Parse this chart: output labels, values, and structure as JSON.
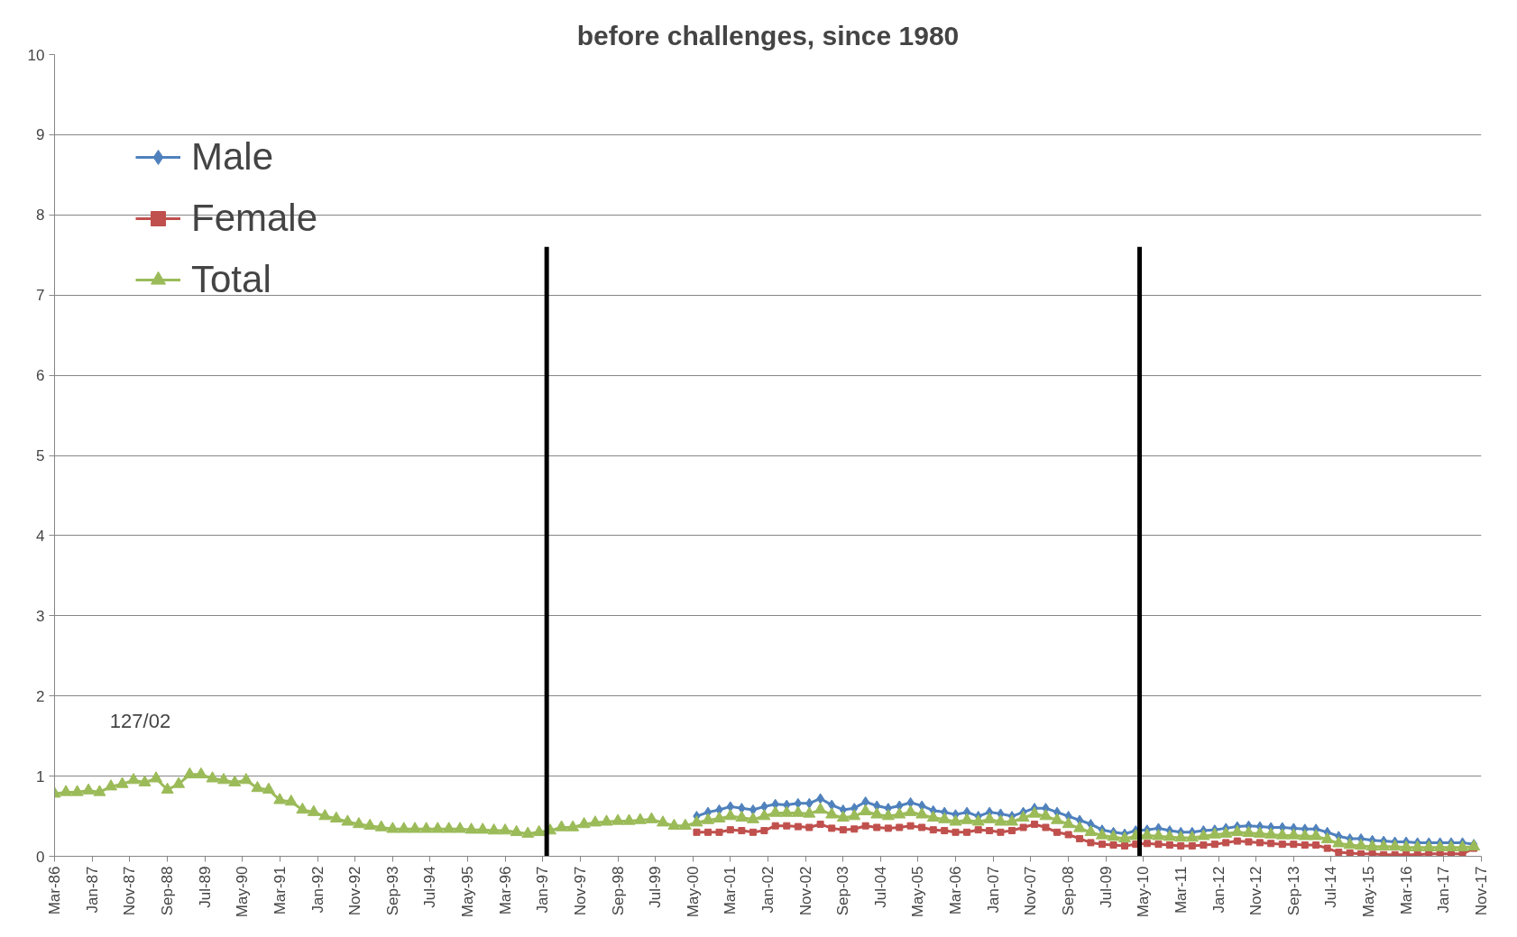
{
  "chart_data": {
    "type": "line",
    "title": "before challenges, since 1980",
    "x": [
      "1986-03",
      "1986-06",
      "1986-09",
      "1986-12",
      "1987-03",
      "1987-06",
      "1987-09",
      "1987-12",
      "1988-03",
      "1988-06",
      "1988-09",
      "1988-12",
      "1989-03",
      "1989-06",
      "1989-09",
      "1989-12",
      "1990-03",
      "1990-06",
      "1990-09",
      "1990-12",
      "1991-03",
      "1991-06",
      "1991-09",
      "1991-12",
      "1992-03",
      "1992-06",
      "1992-09",
      "1992-12",
      "1993-03",
      "1993-06",
      "1993-09",
      "1993-12",
      "1994-03",
      "1994-06",
      "1994-09",
      "1994-12",
      "1995-03",
      "1995-06",
      "1995-09",
      "1995-12",
      "1996-03",
      "1996-06",
      "1996-09",
      "1996-12",
      "1997-03",
      "1997-06",
      "1997-09",
      "1997-12",
      "1998-03",
      "1998-06",
      "1998-09",
      "1998-12",
      "1999-03",
      "1999-06",
      "1999-09",
      "1999-12",
      "2000-03",
      "2000-06",
      "2000-09",
      "2000-12",
      "2001-03",
      "2001-06",
      "2001-09",
      "2001-12",
      "2002-03",
      "2002-06",
      "2002-09",
      "2002-12",
      "2003-03",
      "2003-06",
      "2003-09",
      "2003-12",
      "2004-03",
      "2004-06",
      "2004-09",
      "2004-12",
      "2005-03",
      "2005-06",
      "2005-09",
      "2005-12",
      "2006-03",
      "2006-06",
      "2006-09",
      "2006-12",
      "2007-03",
      "2007-06",
      "2007-09",
      "2007-12",
      "2008-03",
      "2008-06",
      "2008-09",
      "2008-12",
      "2009-03",
      "2009-06",
      "2009-09",
      "2009-12",
      "2010-03",
      "2010-06",
      "2010-09",
      "2010-12",
      "2011-03",
      "2011-06",
      "2011-09",
      "2011-12",
      "2012-03",
      "2012-06",
      "2012-09",
      "2012-12",
      "2013-03",
      "2013-06",
      "2013-09",
      "2013-12",
      "2014-03",
      "2014-06",
      "2014-09",
      "2014-12",
      "2015-03",
      "2015-06",
      "2015-09",
      "2015-12",
      "2016-03",
      "2016-06",
      "2016-09",
      "2016-12",
      "2017-03",
      "2017-06",
      "2017-09"
    ],
    "series": [
      {
        "name": "Male",
        "color": "#4f81bd",
        "marker": "diamond",
        "values": [
          null,
          null,
          null,
          null,
          null,
          null,
          null,
          null,
          null,
          null,
          null,
          null,
          null,
          null,
          null,
          null,
          null,
          null,
          null,
          null,
          null,
          null,
          null,
          null,
          null,
          null,
          null,
          null,
          null,
          null,
          null,
          null,
          null,
          null,
          null,
          null,
          null,
          null,
          null,
          null,
          null,
          null,
          null,
          null,
          null,
          null,
          null,
          null,
          null,
          null,
          null,
          null,
          null,
          null,
          null,
          null,
          null,
          0.5,
          0.55,
          0.58,
          0.62,
          0.6,
          0.58,
          0.62,
          0.65,
          0.64,
          0.66,
          0.66,
          0.72,
          0.64,
          0.58,
          0.6,
          0.68,
          0.63,
          0.6,
          0.63,
          0.67,
          0.63,
          0.57,
          0.55,
          0.52,
          0.55,
          0.5,
          0.55,
          0.53,
          0.5,
          0.55,
          0.6,
          0.6,
          0.55,
          0.5,
          0.45,
          0.4,
          0.33,
          0.3,
          0.28,
          0.32,
          0.33,
          0.35,
          0.32,
          0.3,
          0.3,
          0.32,
          0.33,
          0.35,
          0.37,
          0.38,
          0.37,
          0.36,
          0.36,
          0.35,
          0.34,
          0.34,
          0.3,
          0.25,
          0.22,
          0.22,
          0.2,
          0.19,
          0.18,
          0.18,
          0.17,
          0.17,
          0.17,
          0.17,
          0.17,
          0.15
        ]
      },
      {
        "name": "Female",
        "color": "#c0504d",
        "marker": "square",
        "values": [
          null,
          null,
          null,
          null,
          null,
          null,
          null,
          null,
          null,
          null,
          null,
          null,
          null,
          null,
          null,
          null,
          null,
          null,
          null,
          null,
          null,
          null,
          null,
          null,
          null,
          null,
          null,
          null,
          null,
          null,
          null,
          null,
          null,
          null,
          null,
          null,
          null,
          null,
          null,
          null,
          null,
          null,
          null,
          null,
          null,
          null,
          null,
          null,
          null,
          null,
          null,
          null,
          null,
          null,
          null,
          null,
          null,
          0.3,
          0.3,
          0.3,
          0.33,
          0.32,
          0.3,
          0.32,
          0.38,
          0.38,
          0.37,
          0.36,
          0.4,
          0.35,
          0.33,
          0.34,
          0.38,
          0.36,
          0.35,
          0.36,
          0.38,
          0.36,
          0.33,
          0.32,
          0.3,
          0.3,
          0.33,
          0.32,
          0.3,
          0.32,
          0.36,
          0.4,
          0.36,
          0.3,
          0.27,
          0.22,
          0.17,
          0.15,
          0.14,
          0.13,
          0.15,
          0.16,
          0.15,
          0.14,
          0.13,
          0.13,
          0.14,
          0.15,
          0.17,
          0.19,
          0.18,
          0.17,
          0.16,
          0.15,
          0.15,
          0.14,
          0.14,
          0.1,
          0.05,
          0.04,
          0.03,
          0.03,
          0.02,
          0.02,
          0.02,
          0.02,
          0.03,
          0.03,
          0.03,
          0.03,
          0.1
        ]
      },
      {
        "name": "Total",
        "color": "#9bbb59",
        "marker": "triangle",
        "values": [
          0.78,
          0.8,
          0.8,
          0.82,
          0.8,
          0.87,
          0.9,
          0.95,
          0.92,
          0.97,
          0.83,
          0.9,
          1.02,
          1.02,
          0.97,
          0.95,
          0.92,
          0.95,
          0.85,
          0.83,
          0.7,
          0.68,
          0.58,
          0.55,
          0.5,
          0.47,
          0.43,
          0.4,
          0.38,
          0.36,
          0.34,
          0.34,
          0.34,
          0.34,
          0.34,
          0.34,
          0.34,
          0.33,
          0.33,
          0.32,
          0.32,
          0.3,
          0.28,
          0.3,
          0.32,
          0.36,
          0.36,
          0.4,
          0.42,
          0.43,
          0.44,
          0.44,
          0.45,
          0.46,
          0.42,
          0.38,
          0.38,
          0.42,
          0.45,
          0.47,
          0.5,
          0.48,
          0.46,
          0.5,
          0.54,
          0.54,
          0.54,
          0.53,
          0.58,
          0.52,
          0.48,
          0.5,
          0.56,
          0.52,
          0.5,
          0.52,
          0.55,
          0.52,
          0.48,
          0.46,
          0.43,
          0.45,
          0.43,
          0.46,
          0.43,
          0.43,
          0.48,
          0.53,
          0.5,
          0.45,
          0.4,
          0.35,
          0.3,
          0.26,
          0.24,
          0.22,
          0.25,
          0.26,
          0.25,
          0.24,
          0.23,
          0.23,
          0.25,
          0.27,
          0.28,
          0.3,
          0.29,
          0.28,
          0.27,
          0.26,
          0.26,
          0.25,
          0.25,
          0.21,
          0.16,
          0.14,
          0.13,
          0.12,
          0.12,
          0.12,
          0.11,
          0.11,
          0.11,
          0.11,
          0.11,
          0.11,
          0.12
        ]
      }
    ],
    "xlim": [
      "1986-03",
      "2017-11"
    ],
    "xticks": [
      {
        "value": "1986-03",
        "label": "Mar-86"
      },
      {
        "value": "1987-01",
        "label": "Jan-87"
      },
      {
        "value": "1987-11",
        "label": "Nov-87"
      },
      {
        "value": "1988-09",
        "label": "Sep-88"
      },
      {
        "value": "1989-07",
        "label": "Jul-89"
      },
      {
        "value": "1990-05",
        "label": "May-90"
      },
      {
        "value": "1991-03",
        "label": "Mar-91"
      },
      {
        "value": "1992-01",
        "label": "Jan-92"
      },
      {
        "value": "1992-11",
        "label": "Nov-92"
      },
      {
        "value": "1993-09",
        "label": "Sep-93"
      },
      {
        "value": "1994-07",
        "label": "Jul-94"
      },
      {
        "value": "1995-05",
        "label": "May-95"
      },
      {
        "value": "1996-03",
        "label": "Mar-96"
      },
      {
        "value": "1997-01",
        "label": "Jan-97"
      },
      {
        "value": "1997-11",
        "label": "Nov-97"
      },
      {
        "value": "1998-09",
        "label": "Sep-98"
      },
      {
        "value": "1999-07",
        "label": "Jul-99"
      },
      {
        "value": "2000-05",
        "label": "May-00"
      },
      {
        "value": "2001-03",
        "label": "Mar-01"
      },
      {
        "value": "2002-01",
        "label": "Jan-02"
      },
      {
        "value": "2002-11",
        "label": "Nov-02"
      },
      {
        "value": "2003-09",
        "label": "Sep-03"
      },
      {
        "value": "2004-07",
        "label": "Jul-04"
      },
      {
        "value": "2005-05",
        "label": "May-05"
      },
      {
        "value": "2006-03",
        "label": "Mar-06"
      },
      {
        "value": "2007-01",
        "label": "Jan-07"
      },
      {
        "value": "2007-11",
        "label": "Nov-07"
      },
      {
        "value": "2008-09",
        "label": "Sep-08"
      },
      {
        "value": "2009-07",
        "label": "Jul-09"
      },
      {
        "value": "2010-05",
        "label": "May-10"
      },
      {
        "value": "2011-03",
        "label": "Mar-11"
      },
      {
        "value": "2012-01",
        "label": "Jan-12"
      },
      {
        "value": "2012-11",
        "label": "Nov-12"
      },
      {
        "value": "2013-09",
        "label": "Sep-13"
      },
      {
        "value": "2014-07",
        "label": "Jul-14"
      },
      {
        "value": "2015-05",
        "label": "May-15"
      },
      {
        "value": "2016-03",
        "label": "Mar-16"
      },
      {
        "value": "2017-01",
        "label": "Jan-17"
      },
      {
        "value": "2017-11",
        "label": "Nov-17"
      }
    ],
    "ylim": [
      0,
      10
    ],
    "yticks": [
      0,
      1,
      2,
      3,
      4,
      5,
      6,
      7,
      8,
      9,
      10
    ],
    "grid": "y",
    "legend": "top left",
    "ref_lines": [
      {
        "axis": "x",
        "value": "1997-02",
        "color": "#000000"
      },
      {
        "axis": "x",
        "value": "2010-04",
        "color": "#000000"
      }
    ],
    "annotations": [
      "127/02"
    ]
  }
}
